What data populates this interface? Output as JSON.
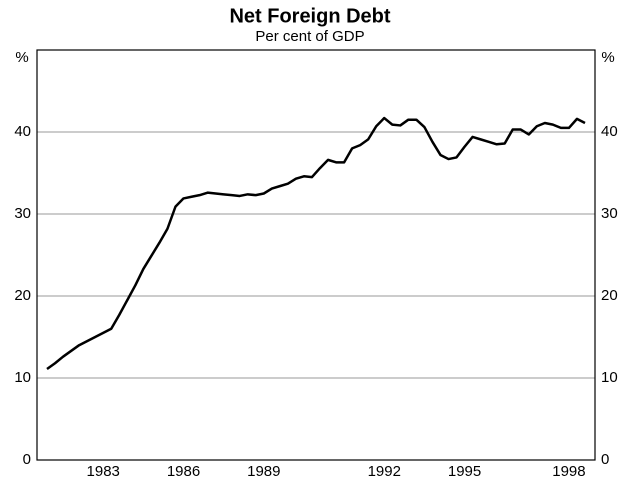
{
  "chart_data": {
    "type": "line",
    "title": "Net Foreign Debt",
    "subtitle": "Per cent of GDP",
    "y_unit": "%",
    "categories": [
      null,
      null,
      null,
      null,
      null,
      null,
      null,
      "1983",
      null,
      null,
      null,
      null,
      null,
      null,
      null,
      null,
      null,
      "1986",
      null,
      null,
      null,
      null,
      null,
      null,
      null,
      null,
      null,
      "1989",
      null,
      null,
      null,
      null,
      null,
      null,
      null,
      null,
      null,
      null,
      null,
      null,
      null,
      null,
      "1992",
      null,
      null,
      null,
      null,
      null,
      null,
      null,
      null,
      null,
      "1995",
      null,
      null,
      null,
      null,
      null,
      null,
      null,
      null,
      null,
      null,
      null,
      null,
      "1998",
      null,
      null
    ],
    "series": [
      {
        "name": "Net Foreign Debt",
        "color": "#000000",
        "values": [
          11.1,
          11.8,
          12.6,
          13.3,
          14.0,
          14.5,
          15.0,
          15.5,
          16.0,
          17.7,
          19.5,
          21.3,
          23.3,
          24.9,
          26.5,
          28.2,
          30.9,
          31.9,
          32.1,
          32.3,
          32.6,
          32.5,
          32.4,
          32.3,
          32.2,
          32.4,
          32.3,
          32.5,
          33.1,
          33.4,
          33.7,
          34.3,
          34.6,
          34.5,
          35.6,
          36.6,
          36.3,
          36.3,
          38.0,
          38.4,
          39.1,
          40.7,
          41.7,
          40.9,
          40.8,
          41.5,
          41.5,
          40.6,
          38.8,
          37.2,
          36.7,
          36.9,
          38.2,
          39.4,
          39.1,
          38.8,
          38.5,
          38.6,
          40.3,
          40.3,
          39.7,
          40.7,
          41.1,
          40.9,
          40.5,
          40.5,
          41.6,
          41.1
        ]
      }
    ],
    "ylim": [
      0,
      50
    ],
    "yticks": [
      0,
      10,
      20,
      30,
      40
    ],
    "grid": true
  }
}
